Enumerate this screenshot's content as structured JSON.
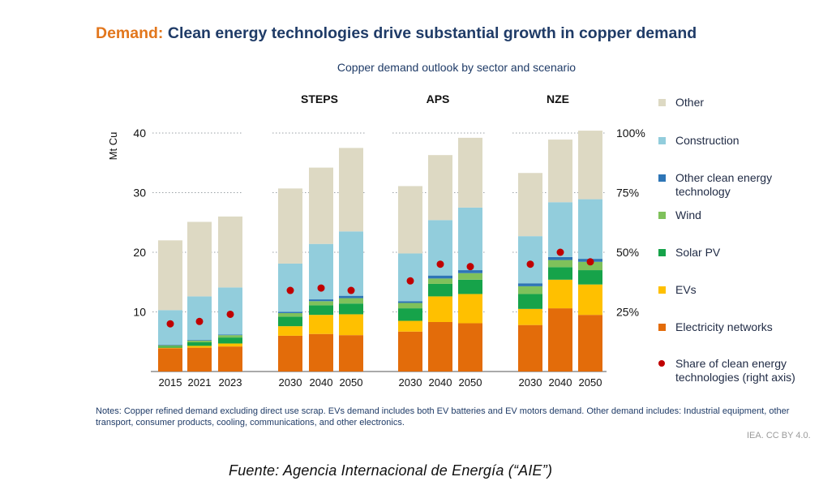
{
  "header": {
    "title_lead": "Demand:",
    "title_rest": "Clean energy technologies drive substantial growth in copper demand"
  },
  "notes": "Notes: Copper refined demand excluding direct use scrap. EVs demand includes both EV batteries and EV motors demand. Other demand includes: Industrial equipment, other transport, consumer products, cooling, communications, and other electronics.",
  "credit": "IEA. CC BY 4.0.",
  "source": "Fuente: Agencia Internacional de Energía (“AIE”)",
  "chart_data": {
    "type": "bar",
    "stacked": true,
    "title": "Copper demand outlook by sector and scenario",
    "ylabel": "Mt Cu",
    "ylim": [
      0,
      40
    ],
    "y_ticks": [
      "10",
      "20",
      "30",
      "40"
    ],
    "y2_ticks": [
      "25%",
      "50%",
      "75%",
      "100%"
    ],
    "y2lim": [
      0,
      1
    ],
    "grid": true,
    "legend_position": "right",
    "groups": [
      {
        "label": "",
        "categories": [
          "2015",
          "2021",
          "2023"
        ]
      },
      {
        "label": "STEPS",
        "categories": [
          "2030",
          "2040",
          "2050"
        ]
      },
      {
        "label": "APS",
        "categories": [
          "2030",
          "2040",
          "2050"
        ]
      },
      {
        "label": "NZE",
        "categories": [
          "2030",
          "2040",
          "2050"
        ]
      }
    ],
    "series": [
      {
        "name": "Electricity networks",
        "color": "#e36c0a",
        "values": [
          3.9,
          4.0,
          4.2,
          6.0,
          6.3,
          6.1,
          6.7,
          8.3,
          8.1,
          7.8,
          10.6,
          9.5
        ]
      },
      {
        "name": "EVs",
        "color": "#ffc000",
        "values": [
          0.1,
          0.3,
          0.5,
          1.6,
          3.2,
          3.5,
          1.8,
          4.3,
          4.9,
          2.7,
          4.8,
          5.1
        ]
      },
      {
        "name": "Solar PV",
        "color": "#16a34a",
        "values": [
          0.2,
          0.6,
          1.0,
          1.6,
          1.6,
          1.8,
          2.1,
          2.1,
          2.4,
          2.5,
          2.1,
          2.4
        ]
      },
      {
        "name": "Wind",
        "color": "#7fc15b",
        "values": [
          0.2,
          0.3,
          0.4,
          0.6,
          0.7,
          0.9,
          0.9,
          0.9,
          1.1,
          1.3,
          1.2,
          1.4
        ]
      },
      {
        "name": "Other clean energy technology",
        "color": "#2e75b6",
        "values": [
          0.1,
          0.1,
          0.1,
          0.2,
          0.3,
          0.4,
          0.3,
          0.5,
          0.5,
          0.5,
          0.5,
          0.5
        ]
      },
      {
        "name": "Construction",
        "color": "#92cddc",
        "values": [
          5.8,
          7.3,
          7.9,
          8.1,
          9.3,
          10.8,
          8.0,
          9.3,
          10.5,
          7.9,
          9.2,
          10.0
        ]
      },
      {
        "name": "Other",
        "color": "#ddd9c3",
        "values": [
          11.7,
          12.5,
          11.9,
          12.6,
          12.8,
          14.0,
          11.3,
          10.9,
          11.7,
          10.6,
          10.5,
          11.5
        ]
      }
    ],
    "share_series": {
      "name": "Share of clean energy technologies (right axis)",
      "color": "#c00000",
      "values": [
        0.2,
        0.21,
        0.24,
        0.34,
        0.35,
        0.34,
        0.38,
        0.45,
        0.44,
        0.45,
        0.5,
        0.46
      ]
    }
  }
}
